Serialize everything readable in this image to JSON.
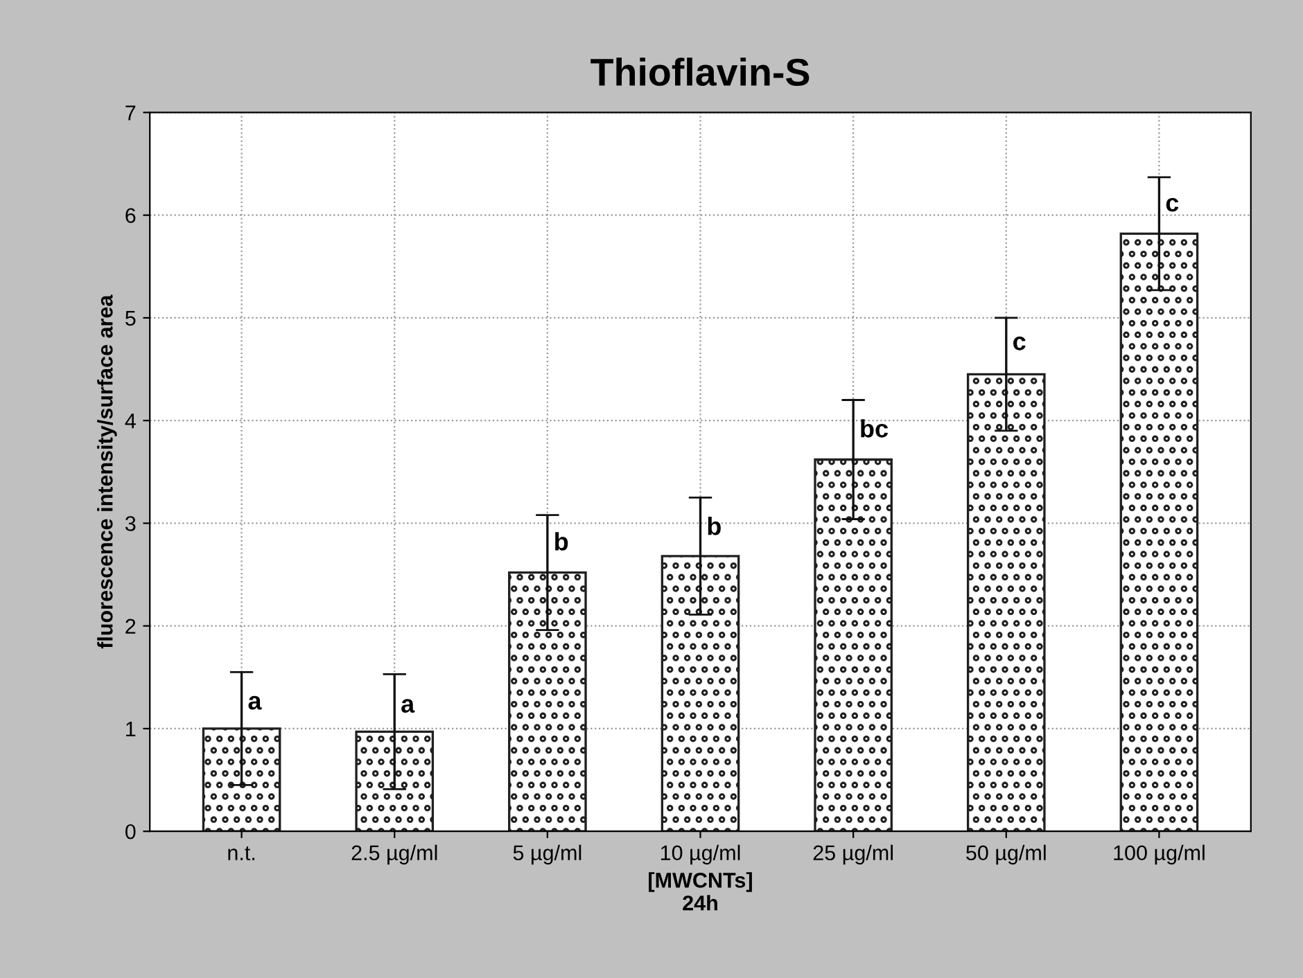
{
  "chart_data": {
    "type": "bar",
    "title": "Thioflavin-S",
    "xlabel": "[MWCNTs]\n24h",
    "ylabel": "fluorescence intensity/surface area",
    "categories": [
      "n.t.",
      "2.5 µg/ml",
      "5 µg/ml",
      "10 µg/ml",
      "25 µg/ml",
      "50 µg/ml",
      "100 µg/ml"
    ],
    "values": [
      1.0,
      0.97,
      2.52,
      2.68,
      3.62,
      4.45,
      5.82
    ],
    "errors": [
      0.55,
      0.56,
      0.56,
      0.57,
      0.58,
      0.55,
      0.55
    ],
    "color": "#202020",
    "ylim": [
      0,
      7
    ],
    "yticks": [
      0,
      1,
      2,
      3,
      4,
      5,
      6,
      7
    ],
    "grid": true,
    "annotations": [
      {
        "text": "a",
        "x": "n.t.",
        "y": 1.25
      },
      {
        "text": "a",
        "x": "2.5 µg/ml",
        "y": 1.22
      },
      {
        "text": "b",
        "x": "5 µg/ml",
        "y": 2.8
      },
      {
        "text": "b",
        "x": "10 µg/ml",
        "y": 2.95
      },
      {
        "text": "bc",
        "x": "25 µg/ml",
        "y": 3.9
      },
      {
        "text": "c",
        "x": "50 µg/ml",
        "y": 4.75
      },
      {
        "text": "c",
        "x": "100 µg/ml",
        "y": 6.1
      }
    ]
  }
}
